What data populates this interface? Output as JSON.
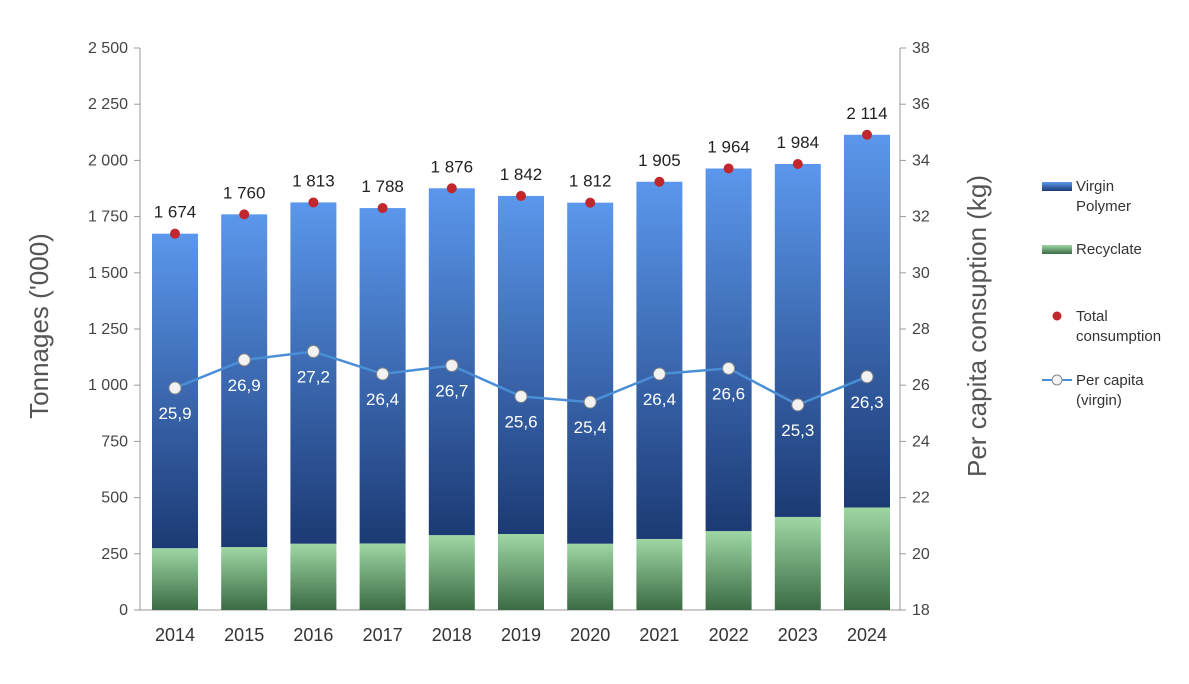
{
  "chart_data": {
    "type": "bar",
    "categories": [
      "2014",
      "2015",
      "2016",
      "2017",
      "2018",
      "2019",
      "2020",
      "2021",
      "2022",
      "2023",
      "2024"
    ],
    "series": [
      {
        "name": "Virgin Polymer",
        "kind": "stacked-bar",
        "axis": "left",
        "values": [
          1399,
          1480,
          1518,
          1492,
          1543,
          1504,
          1517,
          1589,
          1613,
          1570,
          1658
        ]
      },
      {
        "name": "Recyclate",
        "kind": "stacked-bar",
        "axis": "left",
        "values": [
          275,
          280,
          295,
          296,
          333,
          338,
          295,
          316,
          351,
          414,
          456
        ]
      },
      {
        "name": "Total consumption",
        "kind": "marker",
        "axis": "left",
        "values": [
          1674,
          1760,
          1813,
          1788,
          1876,
          1842,
          1812,
          1905,
          1964,
          1984,
          2114
        ],
        "labels": [
          "1 674",
          "1 760",
          "1 813",
          "1 788",
          "1 876",
          "1 842",
          "1 812",
          "1 905",
          "1 964",
          "1 984",
          "2 114"
        ]
      },
      {
        "name": "Per capita (virgin)",
        "kind": "line",
        "axis": "right",
        "values": [
          25.9,
          26.9,
          27.2,
          26.4,
          26.7,
          25.6,
          25.4,
          26.4,
          26.6,
          25.3,
          26.3
        ],
        "labels": [
          "25,9",
          "26,9",
          "27,2",
          "26,4",
          "26,7",
          "25,6",
          "25,4",
          "26,4",
          "26,6",
          "25,3",
          "26,3"
        ]
      }
    ],
    "ylabel": "Tonnages ('000)",
    "y2label": "Per capita consuption (kg)",
    "ylim": [
      0,
      2500
    ],
    "y2lim": [
      18,
      38
    ],
    "yticks": [
      "0",
      "250",
      "500",
      "750",
      "1 000",
      "1 250",
      "1 500",
      "1 750",
      "2 000",
      "2 250",
      "2 500"
    ],
    "y2ticks": [
      "18",
      "20",
      "22",
      "24",
      "26",
      "28",
      "30",
      "32",
      "34",
      "36",
      "38"
    ],
    "grid": false,
    "legend_position": "right",
    "legend": [
      {
        "lines": [
          "Virgin",
          "Polymer"
        ],
        "symbol": "bar-blue"
      },
      {
        "lines": [
          "Recyclate"
        ],
        "symbol": "bar-green"
      },
      {
        "lines": [
          "Total",
          "consumption"
        ],
        "symbol": "dot-red"
      },
      {
        "lines": [
          "Per capita",
          "(virgin)"
        ],
        "symbol": "line-marker"
      }
    ],
    "colors": {
      "virgin_top": "#5b97ec",
      "virgin_bottom": "#1c3a74",
      "recyclate_top": "#9ed7a4",
      "recyclate_bottom": "#3b6b44",
      "total_marker": "#c0282d",
      "per_capita_line": "#4a8fd6",
      "per_capita_marker": "#f2f2f2"
    }
  }
}
